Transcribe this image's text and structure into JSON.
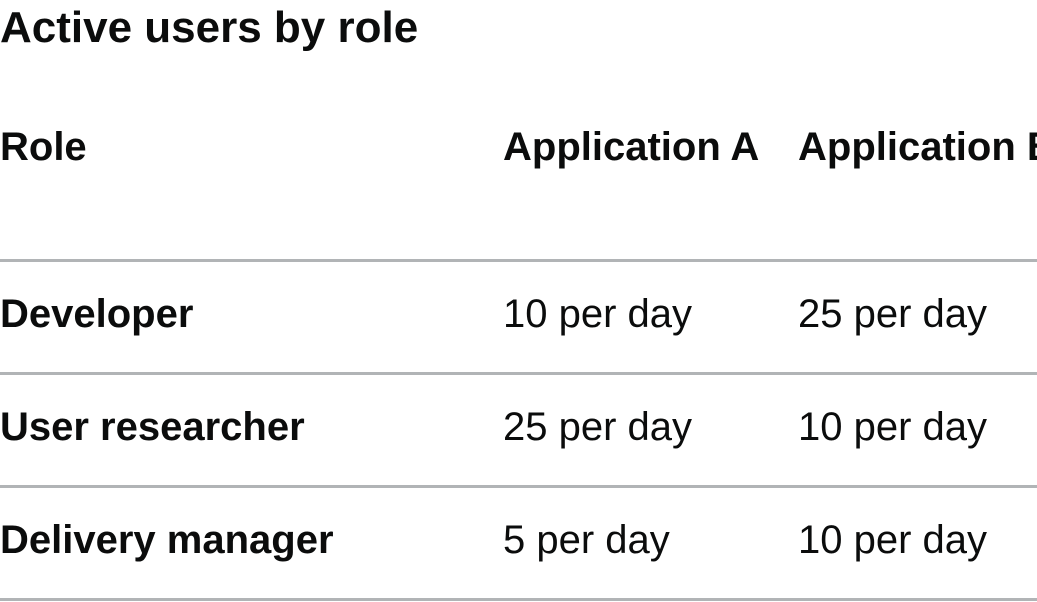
{
  "table": {
    "caption": "Active users by role",
    "headers": {
      "role": "Role",
      "app_a": "Application A",
      "app_b": "Application B"
    },
    "rows": [
      {
        "role": "Developer",
        "app_a": "10 per day",
        "app_b": "25 per day"
      },
      {
        "role": "User researcher",
        "app_a": "25 per day",
        "app_b": "10 per day"
      },
      {
        "role": "Delivery manager",
        "app_a": "5 per day",
        "app_b": "10 per day"
      }
    ]
  }
}
